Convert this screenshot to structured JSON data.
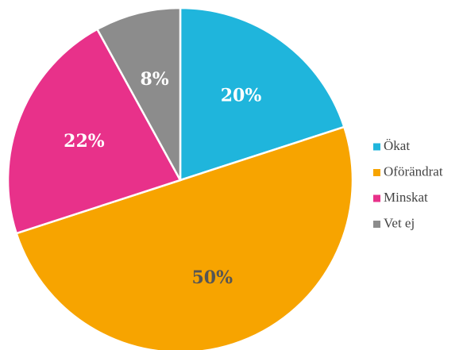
{
  "chart_data": {
    "type": "pie",
    "categories": [
      "Ökat",
      "Oförändrat",
      "Minskat",
      "Vet ej"
    ],
    "values": [
      20,
      50,
      22,
      8
    ],
    "value_labels": [
      "20%",
      "50%",
      "22%",
      "8%"
    ],
    "colors": [
      "#1fb5dc",
      "#f7a400",
      "#e8318a",
      "#8c8c8c"
    ],
    "label_colors": [
      "#ffffff",
      "#555555",
      "#ffffff",
      "#ffffff"
    ],
    "legend": "right"
  }
}
